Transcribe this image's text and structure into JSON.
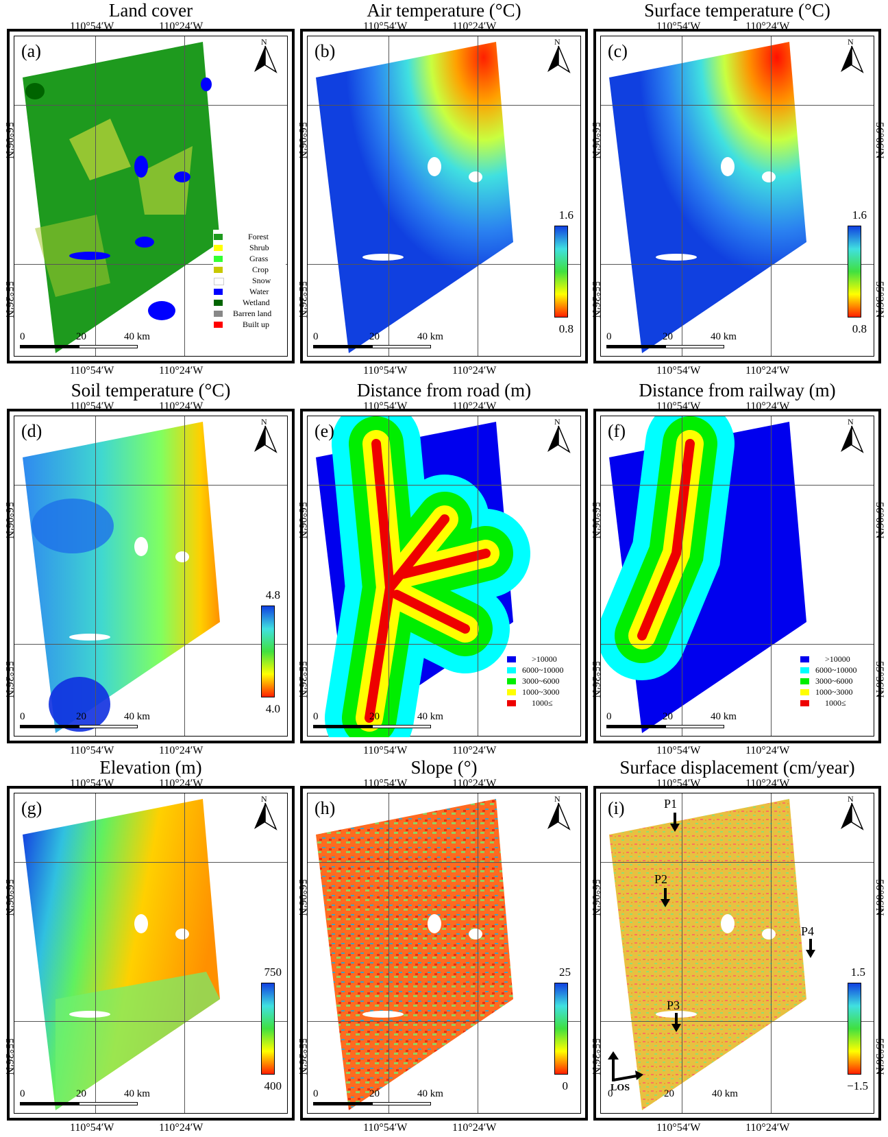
{
  "lon_labels": {
    "left": "110°54′W",
    "right": "110°24′W"
  },
  "lat_labels": {
    "upper": "56°06′N",
    "lower": "55°36′N"
  },
  "scale_bar": {
    "zero": "0",
    "mid": "20",
    "end": "40 km"
  },
  "north_label": "N",
  "panels": [
    {
      "id": "a",
      "label": "(a)",
      "title": "Land cover"
    },
    {
      "id": "b",
      "label": "(b)",
      "title": "Air temperature (°C)",
      "cbar_max": "1.6",
      "cbar_min": "0.8"
    },
    {
      "id": "c",
      "label": "(c)",
      "title": "Surface temperature (°C)",
      "cbar_max": "1.6",
      "cbar_min": "0.8"
    },
    {
      "id": "d",
      "label": "(d)",
      "title": "Soil temperature (°C)",
      "cbar_max": "4.8",
      "cbar_min": "4.0"
    },
    {
      "id": "e",
      "label": "(e)",
      "title": "Distance from road (m)"
    },
    {
      "id": "f",
      "label": "(f)",
      "title": "Distance from railway (m)"
    },
    {
      "id": "g",
      "label": "(g)",
      "title": "Elevation (m)",
      "cbar_max": "750",
      "cbar_min": "400"
    },
    {
      "id": "h",
      "label": "(h)",
      "title": "Slope (°)",
      "cbar_max": "25",
      "cbar_min": "0"
    },
    {
      "id": "i",
      "label": "(i)",
      "title": "Surface displacement (cm/year)",
      "cbar_max": "1.5",
      "cbar_min": "−1.5"
    }
  ],
  "landcover_legend": [
    {
      "label": "Forest",
      "color": "#1e9a1e"
    },
    {
      "label": "Shrub",
      "color": "#ffff00"
    },
    {
      "label": "Grass",
      "color": "#33ff33"
    },
    {
      "label": "Crop",
      "color": "#c8c800"
    },
    {
      "label": "Snow",
      "color": "#ffffff"
    },
    {
      "label": "Water",
      "color": "#0000ff"
    },
    {
      "label": "Wetland",
      "color": "#006400"
    },
    {
      "label": "Barren land",
      "color": "#888888"
    },
    {
      "label": "Built up",
      "color": "#ff0000"
    }
  ],
  "distance_legend": [
    {
      "label": ">10000",
      "color": "#0000ee"
    },
    {
      "label": "6000~10000",
      "color": "#00ffff"
    },
    {
      "label": "3000~6000",
      "color": "#00ee00"
    },
    {
      "label": "1000~3000",
      "color": "#ffff00"
    },
    {
      "label": "1000≤",
      "color": "#ee0000"
    }
  ],
  "displacement_points": [
    "P1",
    "P2",
    "P3",
    "P4"
  ],
  "los_label": "LOS"
}
